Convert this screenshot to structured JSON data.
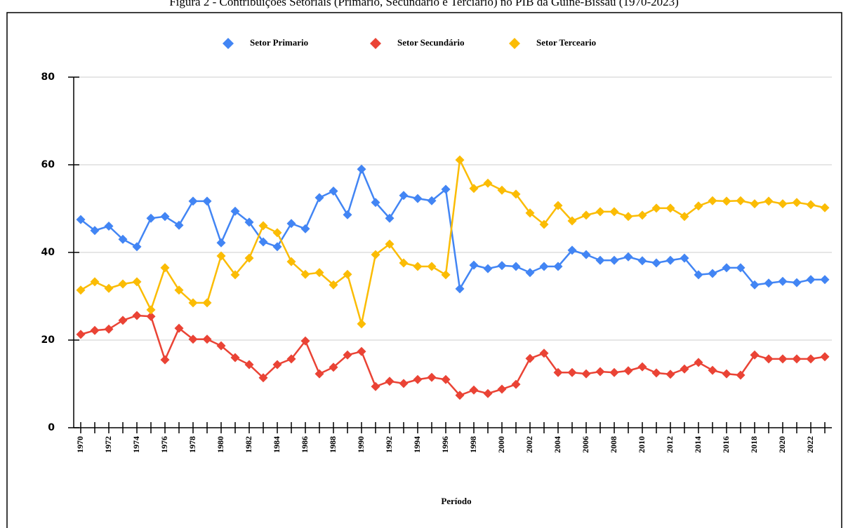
{
  "chart_data": {
    "type": "line",
    "title": "Figura 2 - Contribuições Setoriais (Primário, Secundário e Terciário) no PIB da Guiné-Bissau (1970-2023)",
    "xlabel": "Período",
    "categories": [
      "1970",
      null,
      "1972",
      null,
      "1974",
      null,
      "1976",
      null,
      "1978",
      null,
      "1980",
      null,
      "1982",
      null,
      "1984",
      null,
      "1986",
      null,
      "1988",
      null,
      "1990",
      null,
      "1992",
      null,
      "1994",
      null,
      "1996",
      null,
      "1998",
      null,
      "2000",
      null,
      "2002",
      null,
      "2004",
      null,
      "2006",
      null,
      "2008",
      null,
      "2010",
      null,
      "2012",
      null,
      "2014",
      null,
      "2016",
      null,
      "2018",
      null,
      "2020",
      null,
      "2022",
      null
    ],
    "series": [
      {
        "name": "Setor Primario",
        "color": "#4285f4",
        "values": [
          47.5,
          45,
          46,
          43,
          41.3,
          47.8,
          48.2,
          46.2,
          51.7,
          51.7,
          42.2,
          49.4,
          46.9,
          42.4,
          41.3,
          46.6,
          45.4,
          52.5,
          54,
          48.6,
          59,
          51.4,
          47.8,
          53,
          52.3,
          51.8,
          54.4,
          31.7,
          37.1,
          36.3,
          37,
          36.8,
          35.4,
          36.8,
          36.8,
          40.5,
          39.5,
          38.2,
          38.2,
          39,
          38.1,
          37.6,
          38.2,
          38.7,
          34.9,
          35.2,
          36.5,
          36.5,
          32.6,
          33,
          33.4,
          33.1,
          33.8,
          33.8
        ]
      },
      {
        "name": "Setor Secundário",
        "color": "#ea4335",
        "values": [
          21.3,
          22.2,
          22.5,
          24.5,
          25.6,
          25.4,
          15.5,
          22.7,
          20.2,
          20.2,
          18.7,
          16,
          14.4,
          11.4,
          14.4,
          15.7,
          19.8,
          12.3,
          13.8,
          16.6,
          17.4,
          9.4,
          10.6,
          10.1,
          11,
          11.5,
          11,
          7.4,
          8.6,
          7.8,
          8.8,
          9.9,
          15.8,
          17,
          12.6,
          12.6,
          12.3,
          12.8,
          12.6,
          13,
          13.9,
          12.5,
          12.2,
          13.4,
          14.9,
          13.1,
          12.3,
          12,
          16.6,
          15.7,
          15.7,
          15.7,
          15.7,
          16.2
        ]
      },
      {
        "name": "Setor Terceario",
        "color": "#fbbc04",
        "values": [
          31.4,
          33.3,
          31.8,
          32.8,
          33.3,
          26.9,
          36.5,
          31.4,
          28.5,
          28.5,
          39.2,
          34.9,
          38.7,
          46.1,
          44.5,
          37.9,
          35,
          35.4,
          32.6,
          35,
          23.7,
          39.5,
          41.9,
          37.6,
          36.8,
          36.8,
          34.9,
          61.1,
          54.6,
          55.8,
          54.2,
          53.3,
          49,
          46.4,
          50.7,
          47.2,
          48.5,
          49.3,
          49.3,
          48.2,
          48.5,
          50.1,
          50.1,
          48.2,
          50.6,
          51.8,
          51.7,
          51.8,
          51.1,
          51.7,
          51.1,
          51.4,
          50.9,
          50.2
        ]
      }
    ],
    "ylim": [
      0,
      80
    ],
    "yticks": [
      0,
      20,
      40,
      60,
      80
    ],
    "grid": true,
    "legend": "top"
  }
}
